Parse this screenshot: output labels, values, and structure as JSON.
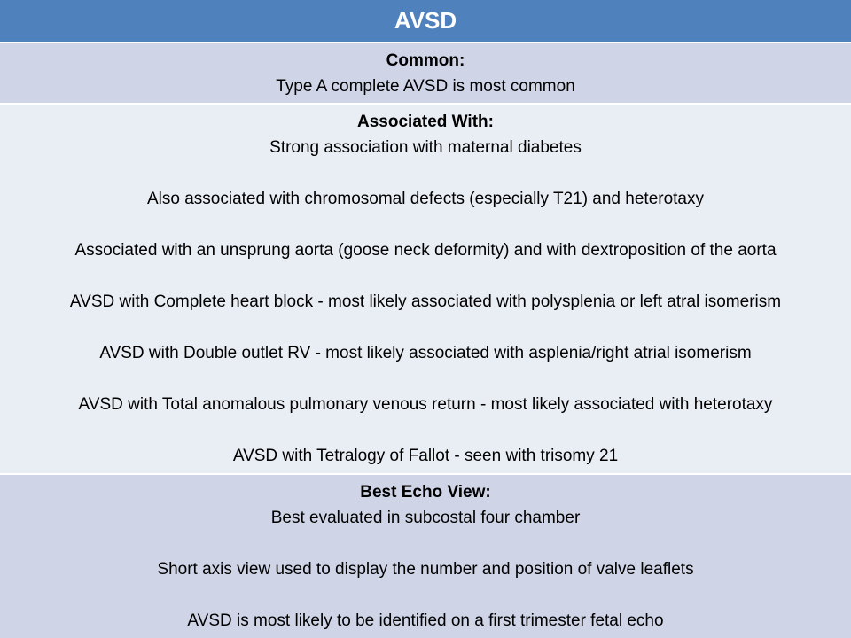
{
  "title": "AVSD",
  "sections": [
    {
      "heading": "Common:",
      "lines": [
        "Type A complete AVSD is most common"
      ]
    },
    {
      "heading": "Associated With:",
      "lines": [
        "Strong association with maternal diabetes",
        "Also associated with chromosomal defects (especially T21) and heterotaxy",
        "Associated with an unsprung aorta (goose neck deformity) and with dextroposition of the aorta",
        "AVSD with Complete heart block - most likely associated with polysplenia or left atral isomerism",
        "AVSD with Double outlet RV - most likely associated with asplenia/right atrial isomerism",
        "AVSD with Total anomalous pulmonary venous return - most likely associated with heterotaxy",
        "AVSD with Tetralogy of Fallot - seen with trisomy 21"
      ]
    },
    {
      "heading": "Best Echo View:",
      "lines": [
        "Best evaluated in subcostal four chamber",
        "Short axis view used to display the number and position of valve leaflets",
        "AVSD is most likely to be identified on a first trimester fetal echo"
      ]
    }
  ]
}
